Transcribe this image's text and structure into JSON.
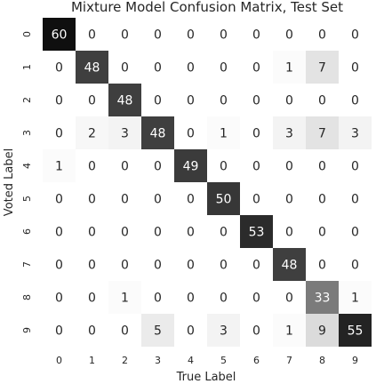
{
  "chart_data": {
    "type": "heatmap",
    "title": "Mixture Model Confusion Matrix, Test Set",
    "xlabel": "True Label",
    "ylabel": "Voted Label",
    "x_categories": [
      "0",
      "1",
      "2",
      "3",
      "4",
      "5",
      "6",
      "7",
      "8",
      "9"
    ],
    "y_categories": [
      "0",
      "1",
      "2",
      "3",
      "4",
      "5",
      "6",
      "7",
      "8",
      "9"
    ],
    "matrix": [
      [
        60,
        0,
        0,
        0,
        0,
        0,
        0,
        0,
        0,
        0
      ],
      [
        0,
        48,
        0,
        0,
        0,
        0,
        0,
        1,
        7,
        0
      ],
      [
        0,
        0,
        48,
        0,
        0,
        0,
        0,
        0,
        0,
        0
      ],
      [
        0,
        2,
        3,
        48,
        0,
        1,
        0,
        3,
        7,
        3
      ],
      [
        1,
        0,
        0,
        0,
        49,
        0,
        0,
        0,
        0,
        0
      ],
      [
        0,
        0,
        0,
        0,
        0,
        50,
        0,
        0,
        0,
        0
      ],
      [
        0,
        0,
        0,
        0,
        0,
        0,
        53,
        0,
        0,
        0
      ],
      [
        0,
        0,
        0,
        0,
        0,
        0,
        0,
        48,
        0,
        0
      ],
      [
        0,
        0,
        1,
        0,
        0,
        0,
        0,
        0,
        33,
        1
      ],
      [
        0,
        0,
        0,
        5,
        0,
        3,
        0,
        1,
        9,
        55
      ]
    ],
    "value_range": [
      0,
      60
    ],
    "colormap": "white-to-black",
    "grid": false,
    "colorbar": false
  }
}
